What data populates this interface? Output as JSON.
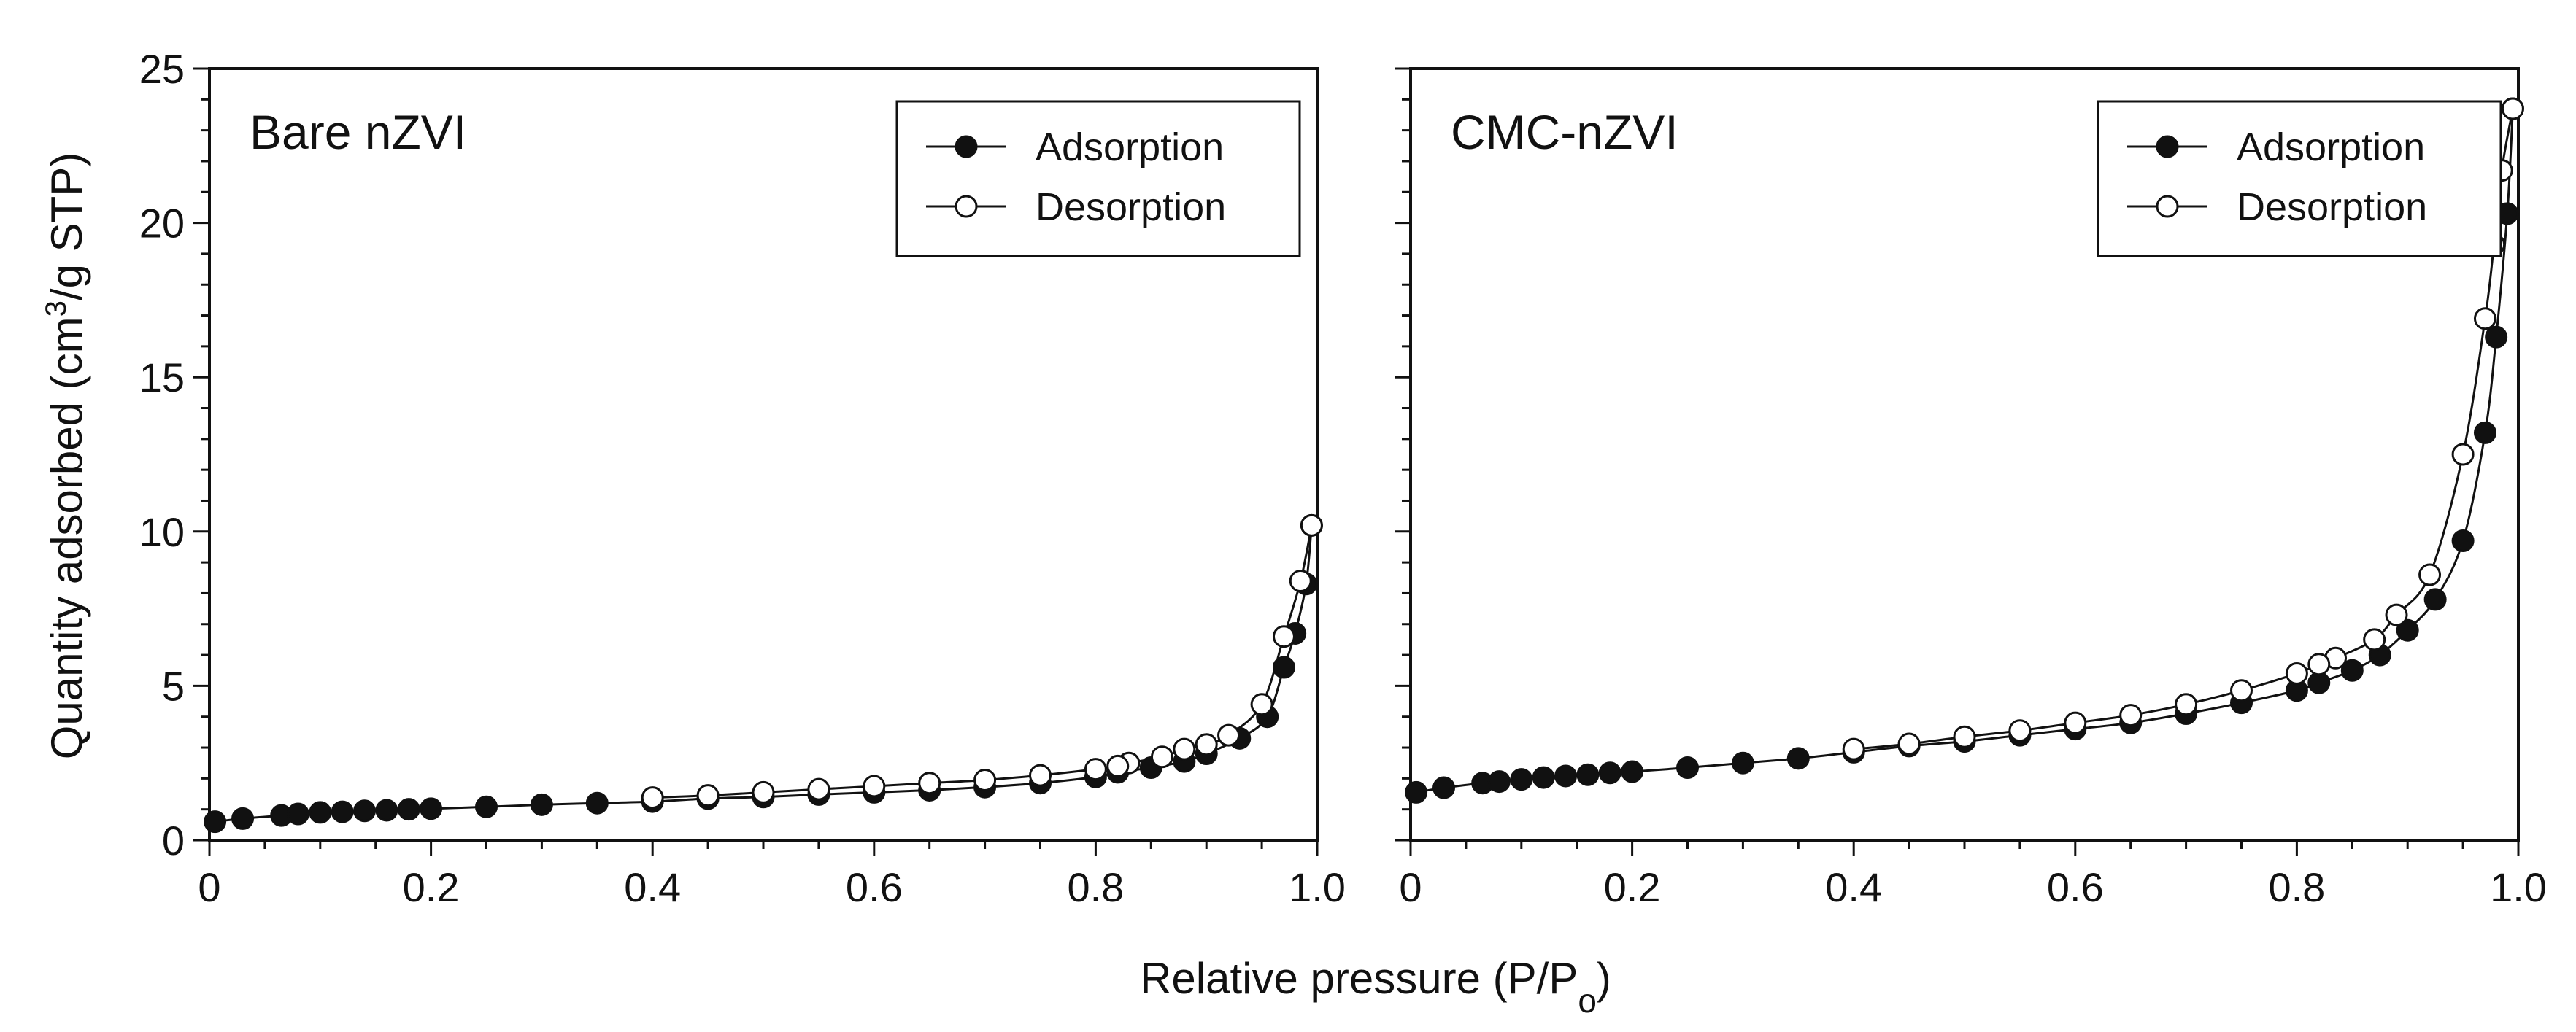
{
  "figure": {
    "ylabel": {
      "prefix": "Quantity adsorbed (cm",
      "sup": "3",
      "suffix": "/g STP)"
    },
    "xlabel": {
      "prefix": "Relative pressure (P/P",
      "sub": "o",
      "suffix": ")"
    }
  },
  "chart_data": [
    {
      "type": "line",
      "title": "Bare nZVI",
      "xlim": [
        0,
        1.0
      ],
      "ylim": [
        0,
        25
      ],
      "x_ticks": [
        "0",
        "0.2",
        "0.4",
        "0.6",
        "0.8",
        "1.0"
      ],
      "y_ticks": [
        "0",
        "5",
        "10",
        "15",
        "20",
        "25"
      ],
      "legend": {
        "position": "top-right",
        "entries": [
          "Adsorption",
          "Desorption"
        ]
      },
      "series": [
        {
          "name": "Adsorption",
          "marker": "filled-circle",
          "x": [
            0.005,
            0.03,
            0.065,
            0.08,
            0.1,
            0.12,
            0.14,
            0.16,
            0.18,
            0.2,
            0.25,
            0.3,
            0.35,
            0.4,
            0.45,
            0.5,
            0.55,
            0.6,
            0.65,
            0.7,
            0.75,
            0.8,
            0.82,
            0.85,
            0.88,
            0.9,
            0.93,
            0.955,
            0.97,
            0.98,
            0.99,
            0.995
          ],
          "y": [
            0.6,
            0.7,
            0.8,
            0.85,
            0.9,
            0.92,
            0.95,
            0.97,
            1.0,
            1.02,
            1.08,
            1.15,
            1.2,
            1.25,
            1.35,
            1.4,
            1.48,
            1.55,
            1.62,
            1.72,
            1.85,
            2.05,
            2.2,
            2.35,
            2.55,
            2.8,
            3.3,
            4.0,
            5.6,
            6.7,
            8.3,
            10.2
          ]
        },
        {
          "name": "Desorption",
          "marker": "open-circle",
          "x": [
            0.995,
            0.985,
            0.97,
            0.95,
            0.92,
            0.9,
            0.88,
            0.86,
            0.83,
            0.82,
            0.8,
            0.75,
            0.7,
            0.65,
            0.6,
            0.55,
            0.5,
            0.45,
            0.4
          ],
          "y": [
            10.2,
            8.4,
            6.6,
            4.4,
            3.4,
            3.1,
            2.95,
            2.7,
            2.5,
            2.4,
            2.3,
            2.1,
            1.95,
            1.85,
            1.75,
            1.65,
            1.55,
            1.45,
            1.38
          ]
        }
      ]
    },
    {
      "type": "line",
      "title": "CMC-nZVI",
      "xlim": [
        0,
        1.0
      ],
      "ylim": [
        0,
        25
      ],
      "x_ticks": [
        "0",
        "0.2",
        "0.4",
        "0.6",
        "0.8",
        "1.0"
      ],
      "y_ticks": [
        "0",
        "5",
        "10",
        "15",
        "20",
        "25"
      ],
      "legend": {
        "position": "top-right",
        "entries": [
          "Adsorption",
          "Desorption"
        ]
      },
      "series": [
        {
          "name": "Adsorption",
          "marker": "filled-circle",
          "x": [
            0.005,
            0.03,
            0.065,
            0.08,
            0.1,
            0.12,
            0.14,
            0.16,
            0.18,
            0.2,
            0.25,
            0.3,
            0.35,
            0.4,
            0.45,
            0.5,
            0.55,
            0.6,
            0.65,
            0.7,
            0.75,
            0.8,
            0.82,
            0.85,
            0.875,
            0.9,
            0.925,
            0.95,
            0.97,
            0.98,
            0.99,
            0.995
          ],
          "y": [
            1.55,
            1.7,
            1.85,
            1.9,
            1.97,
            2.03,
            2.08,
            2.12,
            2.18,
            2.22,
            2.35,
            2.5,
            2.65,
            2.85,
            3.05,
            3.2,
            3.4,
            3.6,
            3.8,
            4.1,
            4.45,
            4.85,
            5.1,
            5.5,
            6.0,
            6.8,
            7.8,
            9.7,
            13.2,
            16.3,
            20.3,
            23.7
          ]
        },
        {
          "name": "Desorption",
          "marker": "open-circle",
          "x": [
            0.995,
            0.985,
            0.978,
            0.97,
            0.95,
            0.92,
            0.89,
            0.87,
            0.835,
            0.82,
            0.8,
            0.75,
            0.7,
            0.65,
            0.6,
            0.55,
            0.5,
            0.45,
            0.4
          ],
          "y": [
            23.7,
            21.7,
            19.3,
            16.9,
            12.5,
            8.6,
            7.3,
            6.5,
            5.9,
            5.7,
            5.4,
            4.85,
            4.4,
            4.05,
            3.8,
            3.55,
            3.35,
            3.12,
            2.95
          ]
        }
      ]
    }
  ]
}
